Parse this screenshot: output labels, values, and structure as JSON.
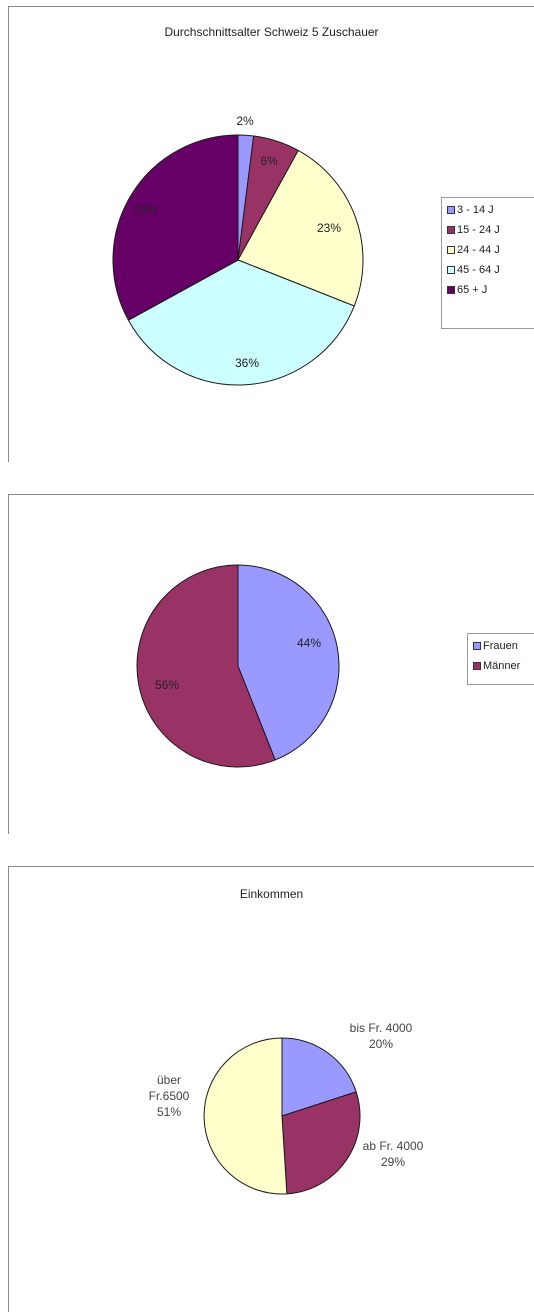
{
  "chart_data": [
    {
      "type": "pie",
      "title": "Durchschnittsalter Schweiz 5 Zuschauer",
      "categories": [
        "3 - 14 J",
        "15 - 24 J",
        "24 - 44 J",
        "45 - 64 J",
        "65 + J"
      ],
      "values": [
        2,
        6,
        23,
        36,
        33
      ],
      "data_labels": [
        "2%",
        "6%",
        "23%",
        "36%",
        "33%"
      ],
      "colors": [
        "#9999ff",
        "#993366",
        "#ffffcc",
        "#ccffff",
        "#660066"
      ],
      "legend_position": "right"
    },
    {
      "type": "pie",
      "title": "",
      "categories": [
        "Frauen",
        "Männer"
      ],
      "values": [
        44,
        56
      ],
      "data_labels": [
        "44%",
        "56%"
      ],
      "colors": [
        "#9999ff",
        "#993366"
      ],
      "legend_position": "right"
    },
    {
      "type": "pie",
      "title": "Einkommen",
      "categories": [
        "bis Fr. 4000",
        "ab Fr. 4000",
        "über Fr.6500"
      ],
      "values": [
        20,
        29,
        51
      ],
      "data_labels": [
        "bis Fr. 4000 20%",
        "ab Fr. 4000 29%",
        "über Fr.6500 51%"
      ],
      "label_lines": [
        [
          "bis Fr. 4000",
          "20%"
        ],
        [
          "ab Fr. 4000",
          "29%"
        ],
        [
          "über",
          "Fr.6500",
          "51%"
        ]
      ],
      "colors": [
        "#9999ff",
        "#993366",
        "#ffffcc"
      ],
      "legend_position": "none"
    }
  ]
}
